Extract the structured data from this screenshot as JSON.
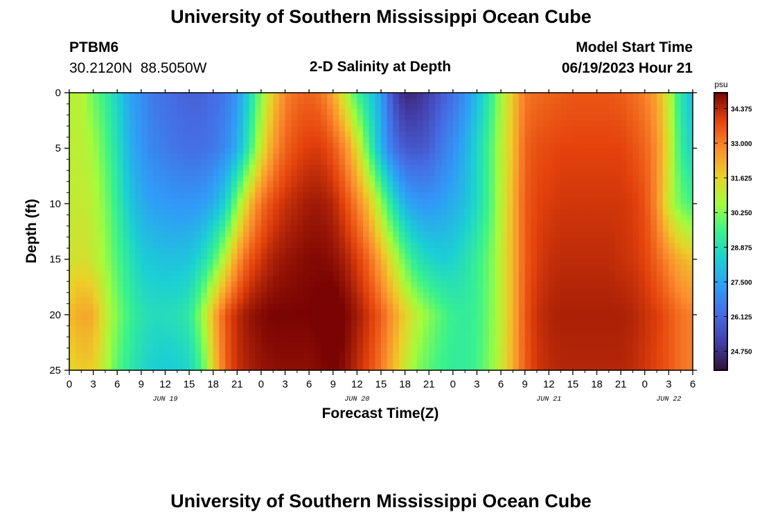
{
  "header": {
    "title": "University of Southern Mississippi Ocean Cube",
    "station_id": "PTBM6",
    "coordinates": "30.2120N  88.5050W",
    "plot_title": "2-D Salinity at Depth",
    "model_start_label": "Model Start Time",
    "model_start_value": "06/19/2023 Hour 21"
  },
  "footer": {
    "title": "University of Southern Mississippi Ocean Cube"
  },
  "chart_data": {
    "type": "heatmap",
    "title": "2-D Salinity at Depth",
    "xlabel": "Forecast Time(Z)",
    "ylabel": "Depth (ft)",
    "x_tick_labels": [
      "0",
      "3",
      "6",
      "9",
      "12",
      "15",
      "18",
      "21",
      "0",
      "3",
      "6",
      "9",
      "12",
      "15",
      "18",
      "21",
      "0",
      "3",
      "6",
      "9",
      "12",
      "15",
      "18",
      "21",
      "0",
      "3",
      "6"
    ],
    "x_range_hours": [
      0,
      78
    ],
    "day_labels": [
      {
        "label": "JUN 19",
        "hour": 12
      },
      {
        "label": "JUN 20",
        "hour": 36
      },
      {
        "label": "JUN 21",
        "hour": 60
      },
      {
        "label": "JUN 22",
        "hour": 75
      }
    ],
    "y_ticks": [
      0,
      5,
      10,
      15,
      20,
      25
    ],
    "ylim": [
      0,
      25
    ],
    "colorbar": {
      "unit": "psu",
      "range": [
        24.0,
        35.0
      ],
      "tick_values": [
        34.375,
        33.0,
        31.625,
        30.25,
        28.875,
        27.5,
        26.125,
        24.75
      ],
      "tick_labels": [
        "34.375",
        "33.000",
        "31.625",
        "30.250",
        "28.875",
        "27.500",
        "26.125",
        "24.750"
      ]
    },
    "grid_hours": [
      0,
      1.5,
      3,
      4.5,
      6,
      7.5,
      9,
      10.5,
      12,
      13.5,
      15,
      16.5,
      18,
      19.5,
      21,
      22.5,
      24,
      25.5,
      27,
      28.5,
      30,
      31.5,
      33,
      34.5,
      36,
      37.5,
      39,
      40.5,
      42,
      43.5,
      45,
      46.5,
      48,
      49.5,
      51,
      52.5,
      54,
      55.5,
      57,
      58.5,
      60,
      61.5,
      63,
      64.5,
      66,
      67.5,
      69,
      70.5,
      72,
      73.5,
      75,
      76.5,
      78
    ],
    "grid_depths_ft": [
      0,
      5,
      10,
      15,
      20,
      25
    ],
    "salinity_psu": [
      [
        30.8,
        30.9,
        30.0,
        29.4,
        28.5,
        27.5,
        27.0,
        26.5,
        26.3,
        26.1,
        26.0,
        26.0,
        26.2,
        26.5,
        27.2,
        28.6,
        30.3,
        31.8,
        32.9,
        33.3,
        33.4,
        33.2,
        32.4,
        30.9,
        29.5,
        28.5,
        27.4,
        25.5,
        24.6,
        24.7,
        25.2,
        25.8,
        26.3,
        27.0,
        28.0,
        29.1,
        30.6,
        31.9,
        33.1,
        33.3,
        33.4,
        33.5,
        33.6,
        33.6,
        33.6,
        33.6,
        33.5,
        33.3,
        33.0,
        32.4,
        31.0,
        29.0,
        28.0
      ],
      [
        30.9,
        31.0,
        30.6,
        29.8,
        28.9,
        27.8,
        27.2,
        26.8,
        26.6,
        26.4,
        26.3,
        26.3,
        26.5,
        26.9,
        27.7,
        29.3,
        31.2,
        32.6,
        33.4,
        33.8,
        34.0,
        34.0,
        33.6,
        32.8,
        31.5,
        29.6,
        27.8,
        26.4,
        25.8,
        25.7,
        25.9,
        26.5,
        27.0,
        27.7,
        28.6,
        29.6,
        30.8,
        32.0,
        33.4,
        33.7,
        33.8,
        33.9,
        33.9,
        33.9,
        33.9,
        33.9,
        33.9,
        33.7,
        33.4,
        32.8,
        31.3,
        29.3,
        28.5
      ],
      [
        31.0,
        31.1,
        30.9,
        30.2,
        29.3,
        28.3,
        27.7,
        27.4,
        27.3,
        27.2,
        27.2,
        27.3,
        27.7,
        28.5,
        30.3,
        32.0,
        33.2,
        33.8,
        34.2,
        34.4,
        34.6,
        34.6,
        34.4,
        33.8,
        33.0,
        31.9,
        30.4,
        28.9,
        27.7,
        27.3,
        27.2,
        27.4,
        27.7,
        28.1,
        28.7,
        29.6,
        30.9,
        32.2,
        33.5,
        33.9,
        34.0,
        34.1,
        34.1,
        34.1,
        34.1,
        34.1,
        34.1,
        34.0,
        33.7,
        32.8,
        31.1,
        30.0,
        29.6
      ],
      [
        31.2,
        31.4,
        31.1,
        30.5,
        29.7,
        29.0,
        28.4,
        28.2,
        28.1,
        28.1,
        28.2,
        28.7,
        29.6,
        31.0,
        32.6,
        33.6,
        34.1,
        34.5,
        34.7,
        34.8,
        34.9,
        34.9,
        34.8,
        34.5,
        34.0,
        33.3,
        32.3,
        31.1,
        29.9,
        29.0,
        28.6,
        28.4,
        28.5,
        28.9,
        29.4,
        30.0,
        31.0,
        32.2,
        33.5,
        34.0,
        34.2,
        34.3,
        34.3,
        34.3,
        34.3,
        34.3,
        34.2,
        34.1,
        33.9,
        33.4,
        32.8,
        32.2,
        31.9
      ],
      [
        32.0,
        32.4,
        32.3,
        31.1,
        30.2,
        29.5,
        29.0,
        28.8,
        28.8,
        28.9,
        29.2,
        30.4,
        32.1,
        33.6,
        34.3,
        34.7,
        34.9,
        35.0,
        35.0,
        35.0,
        35.0,
        35.1,
        35.3,
        35.0,
        34.6,
        34.1,
        33.5,
        32.6,
        31.7,
        30.9,
        30.3,
        29.8,
        29.4,
        29.3,
        29.5,
        30.1,
        31.0,
        32.2,
        33.6,
        34.2,
        34.4,
        34.5,
        34.5,
        34.5,
        34.5,
        34.5,
        34.5,
        34.4,
        34.2,
        34.0,
        33.6,
        33.2,
        33.0
      ],
      [
        31.5,
        31.8,
        31.7,
        30.8,
        29.8,
        29.2,
        28.7,
        28.4,
        28.3,
        28.4,
        28.6,
        29.6,
        31.6,
        33.4,
        34.2,
        34.5,
        34.7,
        34.8,
        34.8,
        34.8,
        34.8,
        34.9,
        35.1,
        34.8,
        34.3,
        33.8,
        33.1,
        32.1,
        31.1,
        30.3,
        29.8,
        29.5,
        29.3,
        29.3,
        29.6,
        30.2,
        31.1,
        32.3,
        33.5,
        34.1,
        34.3,
        34.4,
        34.4,
        34.4,
        34.4,
        34.4,
        34.4,
        34.3,
        34.1,
        33.9,
        33.6,
        33.2,
        33.0
      ]
    ]
  }
}
